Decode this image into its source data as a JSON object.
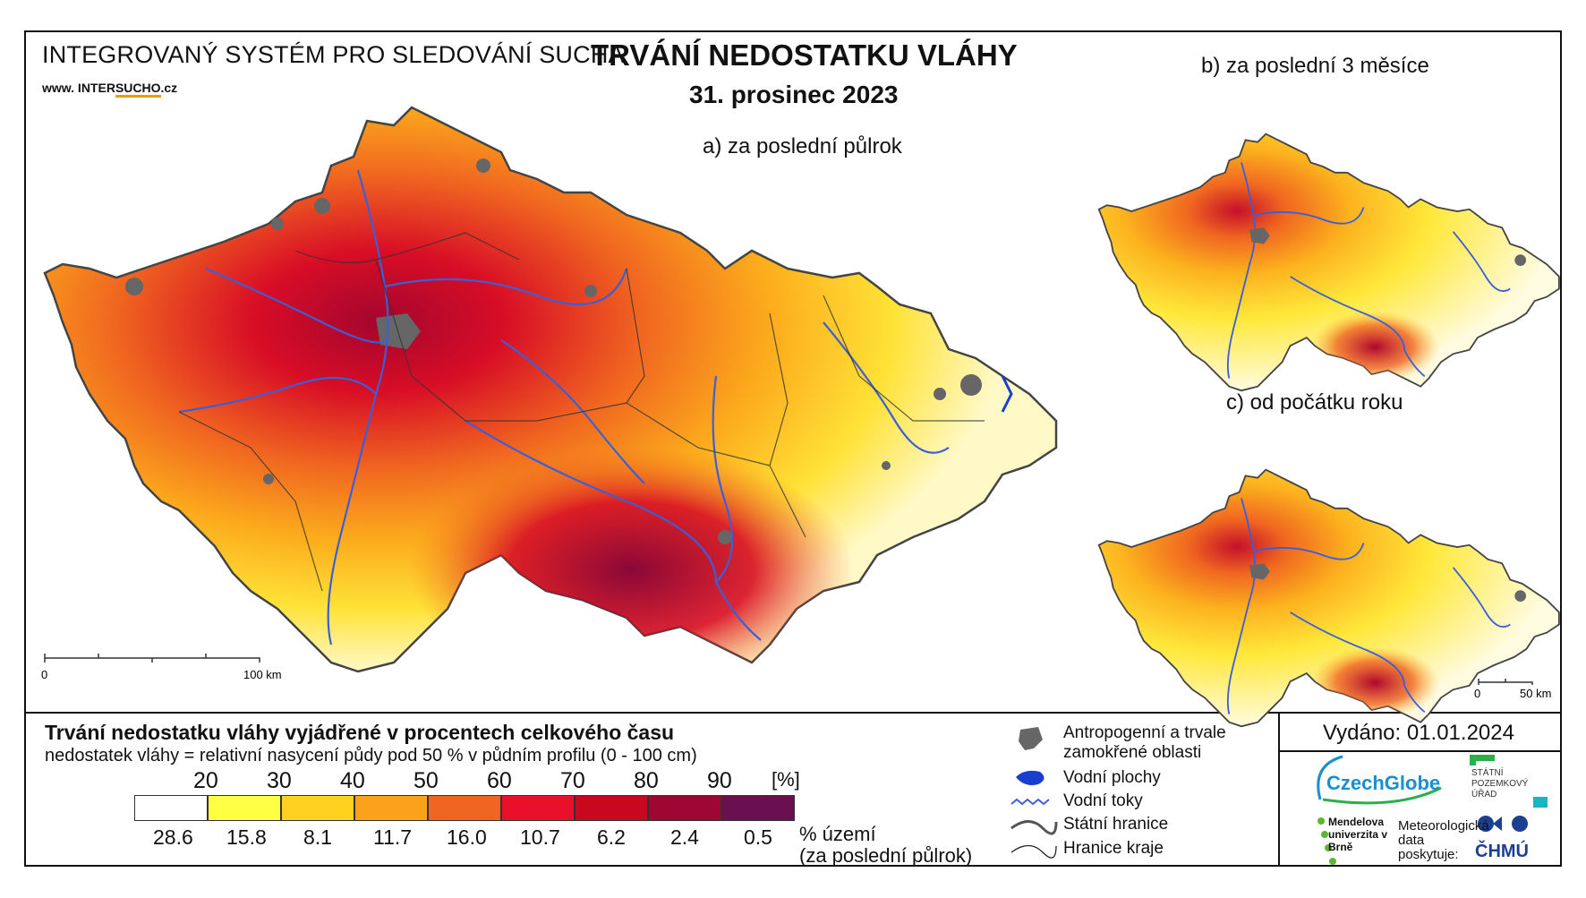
{
  "header": {
    "system_title": "INTEGROVANÝ SYSTÉM PRO SLEDOVÁNÍ SUCHA",
    "url_prefix": "www. INTER",
    "url_highlight": "SUCHO",
    "url_suffix": ".cz",
    "main_title": "TRVÁNÍ NEDOSTATKU VLÁHY",
    "date": "31. prosinec 2023"
  },
  "maps": {
    "a_label": "a) za poslední půlrok",
    "b_label": "b) za poslední 3 měsíce",
    "c_label": "c) od počátku roku",
    "scale_main": {
      "start": "0",
      "end": "100 km"
    },
    "scale_small": {
      "start": "0",
      "end": "50 km"
    }
  },
  "legend": {
    "title": "Trvání nedostatku vláhy vyjádřené v procentech celkového času",
    "subtitle": "nedostatek vláhy = relativní nasycení půdy pod 50 % v půdním profilu (0 - 100 cm)",
    "unit": "[%]",
    "ticks": [
      "20",
      "30",
      "40",
      "50",
      "60",
      "70",
      "80",
      "90"
    ],
    "classes": [
      {
        "color": "#ffffff",
        "pct": "28.6"
      },
      {
        "color": "#ffff44",
        "pct": "15.8"
      },
      {
        "color": "#ffd21f",
        "pct": "8.1"
      },
      {
        "color": "#fca11a",
        "pct": "11.7"
      },
      {
        "color": "#f06620",
        "pct": "16.0"
      },
      {
        "color": "#e8102a",
        "pct": "10.7"
      },
      {
        "color": "#c9081f",
        "pct": "6.2"
      },
      {
        "color": "#9e0633",
        "pct": "2.4"
      },
      {
        "color": "#6a0f4f",
        "pct": "0.5"
      }
    ],
    "uzemi_line1": "% území",
    "uzemi_line2": "(za poslední půlrok)"
  },
  "symbols": {
    "anthropogenic": "Antropogenní a trvale zamokřené oblasti",
    "water_bodies": "Vodní plochy",
    "rivers": "Vodní toky",
    "state_border": "Státní hranice",
    "region_border": "Hranice kraje"
  },
  "footer": {
    "issued": "Vydáno: 01.01.2024",
    "czechglobe": "CzechGlobe",
    "spu": "STÁTNÍ POZEMKOVÝ ÚŘAD",
    "mendel": "Mendelova univerzita v Brně",
    "meteo": "Meteorologická data poskytuje:",
    "chmu": "ČHMÚ"
  },
  "colors": {
    "river": "#3a5fd8",
    "urban": "#666666",
    "border": "#222222"
  }
}
